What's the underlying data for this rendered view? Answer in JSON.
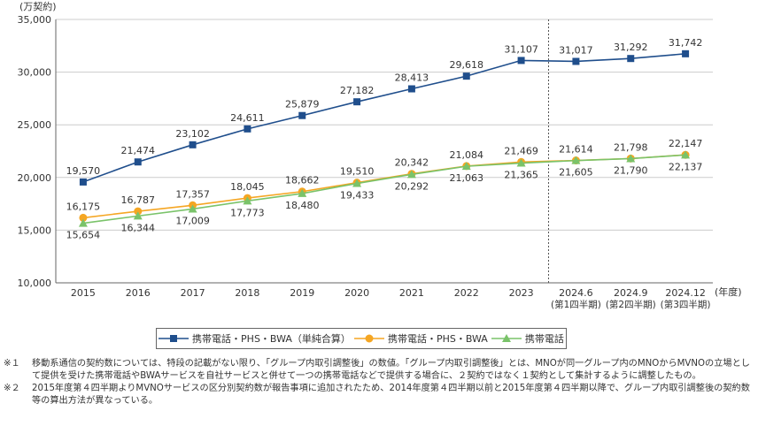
{
  "chart_data": {
    "type": "line",
    "y_unit_label": "(万契約)",
    "x_unit_label": "(年度)",
    "ylim": [
      10000,
      35000
    ],
    "y_ticks": [
      "10,000",
      "15,000",
      "20,000",
      "25,000",
      "30,000",
      "35,000"
    ],
    "y_tick_values": [
      10000,
      15000,
      20000,
      25000,
      30000,
      35000
    ],
    "categories": [
      [
        "2015"
      ],
      [
        "2016"
      ],
      [
        "2017"
      ],
      [
        "2018"
      ],
      [
        "2019"
      ],
      [
        "2020"
      ],
      [
        "2021"
      ],
      [
        "2022"
      ],
      [
        "2023"
      ],
      [
        "2024.6",
        "(第1四半期)"
      ],
      [
        "2024.9",
        "(第2四半期)"
      ],
      [
        "2024.12",
        "(第3四半期)"
      ]
    ],
    "divider_after_index": 8,
    "grid": "horizontal",
    "series": [
      {
        "name": "携帯電話・PHS・BWA（単純合算）",
        "color": "#1f4e8c",
        "marker": "square",
        "values": [
          19570,
          21474,
          23102,
          24611,
          25879,
          27182,
          28413,
          29618,
          31107,
          31017,
          31292,
          31742
        ],
        "labels": [
          "19,570",
          "21,474",
          "23,102",
          "24,611",
          "25,879",
          "27,182",
          "28,413",
          "29,618",
          "31,107",
          "31,017",
          "31,292",
          "31,742"
        ]
      },
      {
        "name": "携帯電話・PHS・BWA",
        "color": "#f5a623",
        "marker": "circle",
        "values": [
          16175,
          16787,
          17357,
          18045,
          18662,
          19510,
          20342,
          21084,
          21469,
          21614,
          21798,
          22147
        ],
        "labels": [
          "16,175",
          "16,787",
          "17,357",
          "18,045",
          "18,662",
          "19,510",
          "20,342",
          "21,084",
          "21,469",
          "21,614",
          "21,798",
          "22,147"
        ]
      },
      {
        "name": "携帯電話",
        "color": "#7ac36a",
        "marker": "triangle",
        "values": [
          15654,
          16344,
          17009,
          17773,
          18480,
          19433,
          20292,
          21063,
          21365,
          21605,
          21790,
          22137
        ],
        "labels": [
          "15,654",
          "16,344",
          "17,009",
          "17,773",
          "18,480",
          "19,433",
          "20,292",
          "21,063",
          "21,365",
          "21,605",
          "21,790",
          "22,137"
        ]
      }
    ]
  },
  "notes": [
    {
      "mark": "※１",
      "text": "移動系通信の契約数については、特段の記載がない限り、「グループ内取引調整後」の数値。「グループ内取引調整後」とは、MNOが同一グループ内のMNOからMVNOの立場として提供を受けた携帯電話やBWAサービスを自社サービスと併せて一つの携帯電話などで提供する場合に、２契約ではなく１契約として集計するように調整したもの。"
    },
    {
      "mark": "※２",
      "text": "2015年度第４四半期よりMVNOサービスの区分別契約数が報告事項に追加されたため、2014年度第４四半期以前と2015年度第４四半期以降で、グループ内取引調整後の契約数等の算出方法が異なっている。"
    }
  ]
}
